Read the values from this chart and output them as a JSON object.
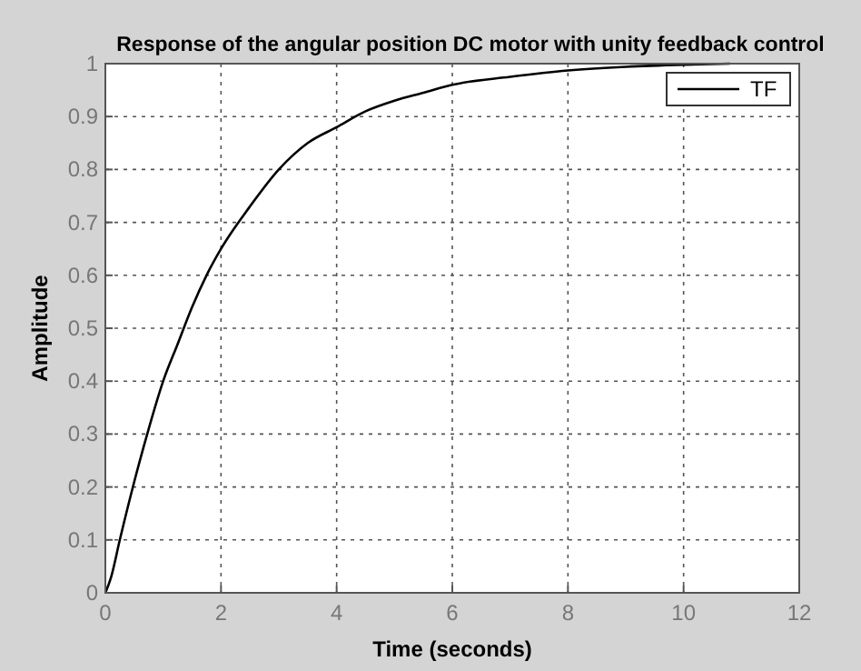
{
  "chart_data": {
    "type": "line",
    "title": "Response of the angular position DC motor with unity feedback control",
    "xlabel": "Time (seconds)",
    "ylabel": "Amplitude",
    "x": [
      0,
      0.1,
      0.25,
      0.5,
      0.75,
      1,
      1.25,
      1.5,
      1.75,
      2,
      2.5,
      3,
      3.5,
      4,
      4.5,
      5,
      5.5,
      6,
      7,
      8,
      9,
      10,
      10.8
    ],
    "series": [
      {
        "name": "TF",
        "color": "#000000",
        "values": [
          0,
          0.03,
          0.1,
          0.21,
          0.31,
          0.4,
          0.47,
          0.54,
          0.6,
          0.65,
          0.73,
          0.8,
          0.85,
          0.88,
          0.91,
          0.93,
          0.945,
          0.96,
          0.975,
          0.987,
          0.994,
          0.998,
          1
        ]
      }
    ],
    "xlim": [
      0,
      12
    ],
    "xticks": [
      0,
      2,
      4,
      6,
      8,
      10,
      12
    ],
    "ylim": [
      0,
      1
    ],
    "yticks": [
      0,
      0.1,
      0.2,
      0.3,
      0.4,
      0.5,
      0.6,
      0.7,
      0.8,
      0.9,
      1
    ],
    "grid": true,
    "legend": "top right",
    "line_style": "solid",
    "marker": "none"
  }
}
